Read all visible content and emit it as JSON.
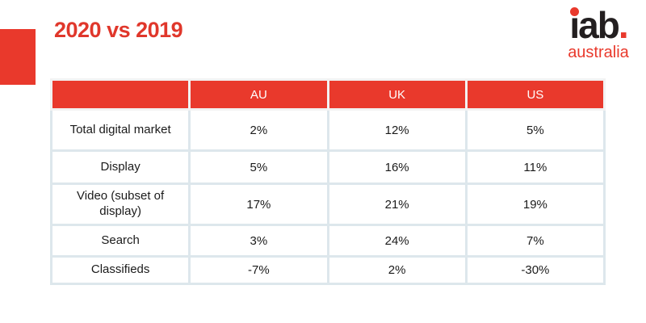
{
  "title": "2020 vs 2019",
  "colors": {
    "accent_red": "#e9392c",
    "title_red": "#e0372b",
    "table_border": "#dde7ec",
    "logo_black": "#231f20"
  },
  "logo": {
    "i": "i",
    "ab": "ab",
    "dot": ".",
    "subtext": "australia"
  },
  "table": {
    "corner_label": "",
    "columns": [
      "AU",
      "UK",
      "US"
    ],
    "rows": [
      {
        "label": "Total digital market",
        "values": [
          "2%",
          "12%",
          "5%"
        ]
      },
      {
        "label": "Display",
        "values": [
          "5%",
          "16%",
          "11%"
        ]
      },
      {
        "label": "Video (subset of display)",
        "values": [
          "17%",
          "21%",
          "19%"
        ]
      },
      {
        "label": "Search",
        "values": [
          "3%",
          "24%",
          "7%"
        ]
      },
      {
        "label": "Classifieds",
        "values": [
          "-7%",
          "2%",
          "-30%"
        ]
      }
    ]
  }
}
